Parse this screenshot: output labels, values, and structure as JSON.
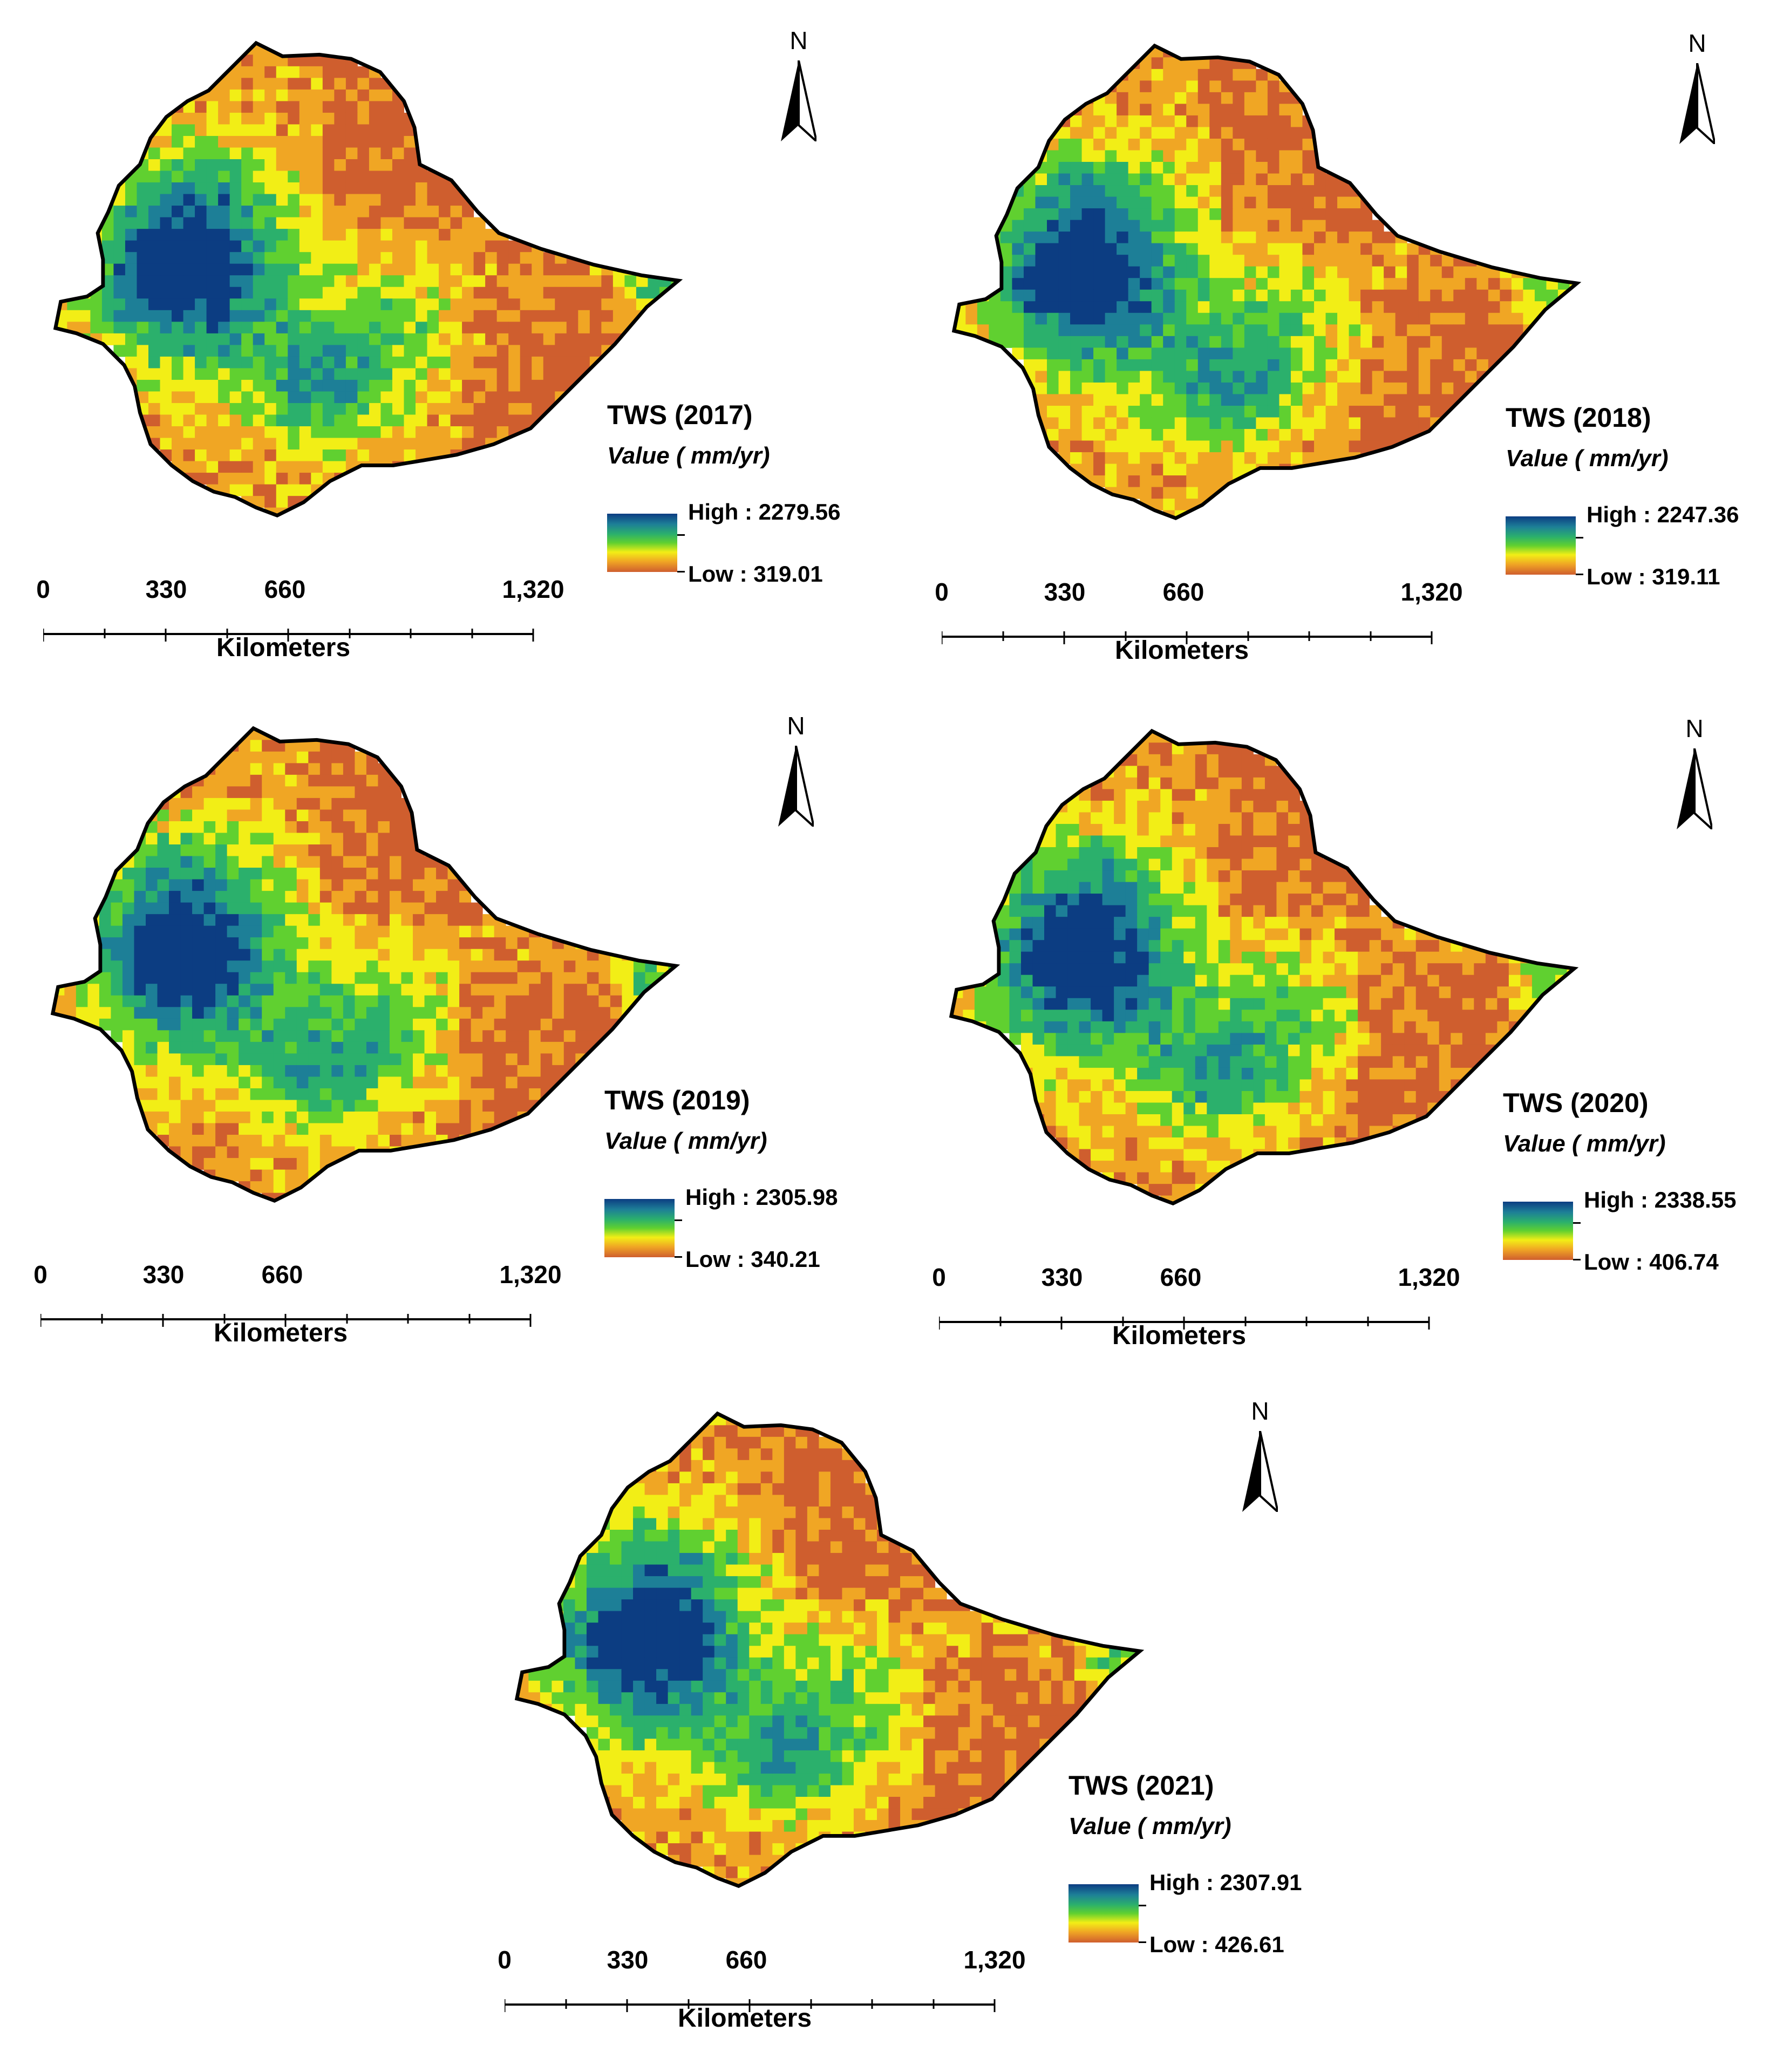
{
  "north_arrow": {
    "label": "N",
    "icon": "north-arrow-icon"
  },
  "legend_colors": [
    "#0c3d82",
    "#1d7f97",
    "#2bb06c",
    "#60d030",
    "#f2ee16",
    "#f0a624",
    "#cf5e2e"
  ],
  "scale_bar": {
    "labels": [
      "0",
      "330",
      "660",
      "1,320"
    ],
    "units": "Kilometers"
  },
  "maps": [
    {
      "title": "TWS (2017)",
      "subtitle": "Value ( mm/yr)",
      "high": "High : 2279.56",
      "low": "Low : 319.01"
    },
    {
      "title": "TWS (2018)",
      "subtitle": "Value ( mm/yr)",
      "high": "High : 2247.36",
      "low": "Low : 319.11"
    },
    {
      "title": "TWS (2019)",
      "subtitle": "Value ( mm/yr)",
      "high": "High : 2305.98",
      "low": "Low : 340.21"
    },
    {
      "title": "TWS (2020)",
      "subtitle": "Value ( mm/yr)",
      "high": "High : 2338.55",
      "low": "Low : 406.74"
    },
    {
      "title": "TWS (2021)",
      "subtitle": "Value ( mm/yr)",
      "high": "High : 2307.91",
      "low": "Low : 426.61"
    }
  ]
}
